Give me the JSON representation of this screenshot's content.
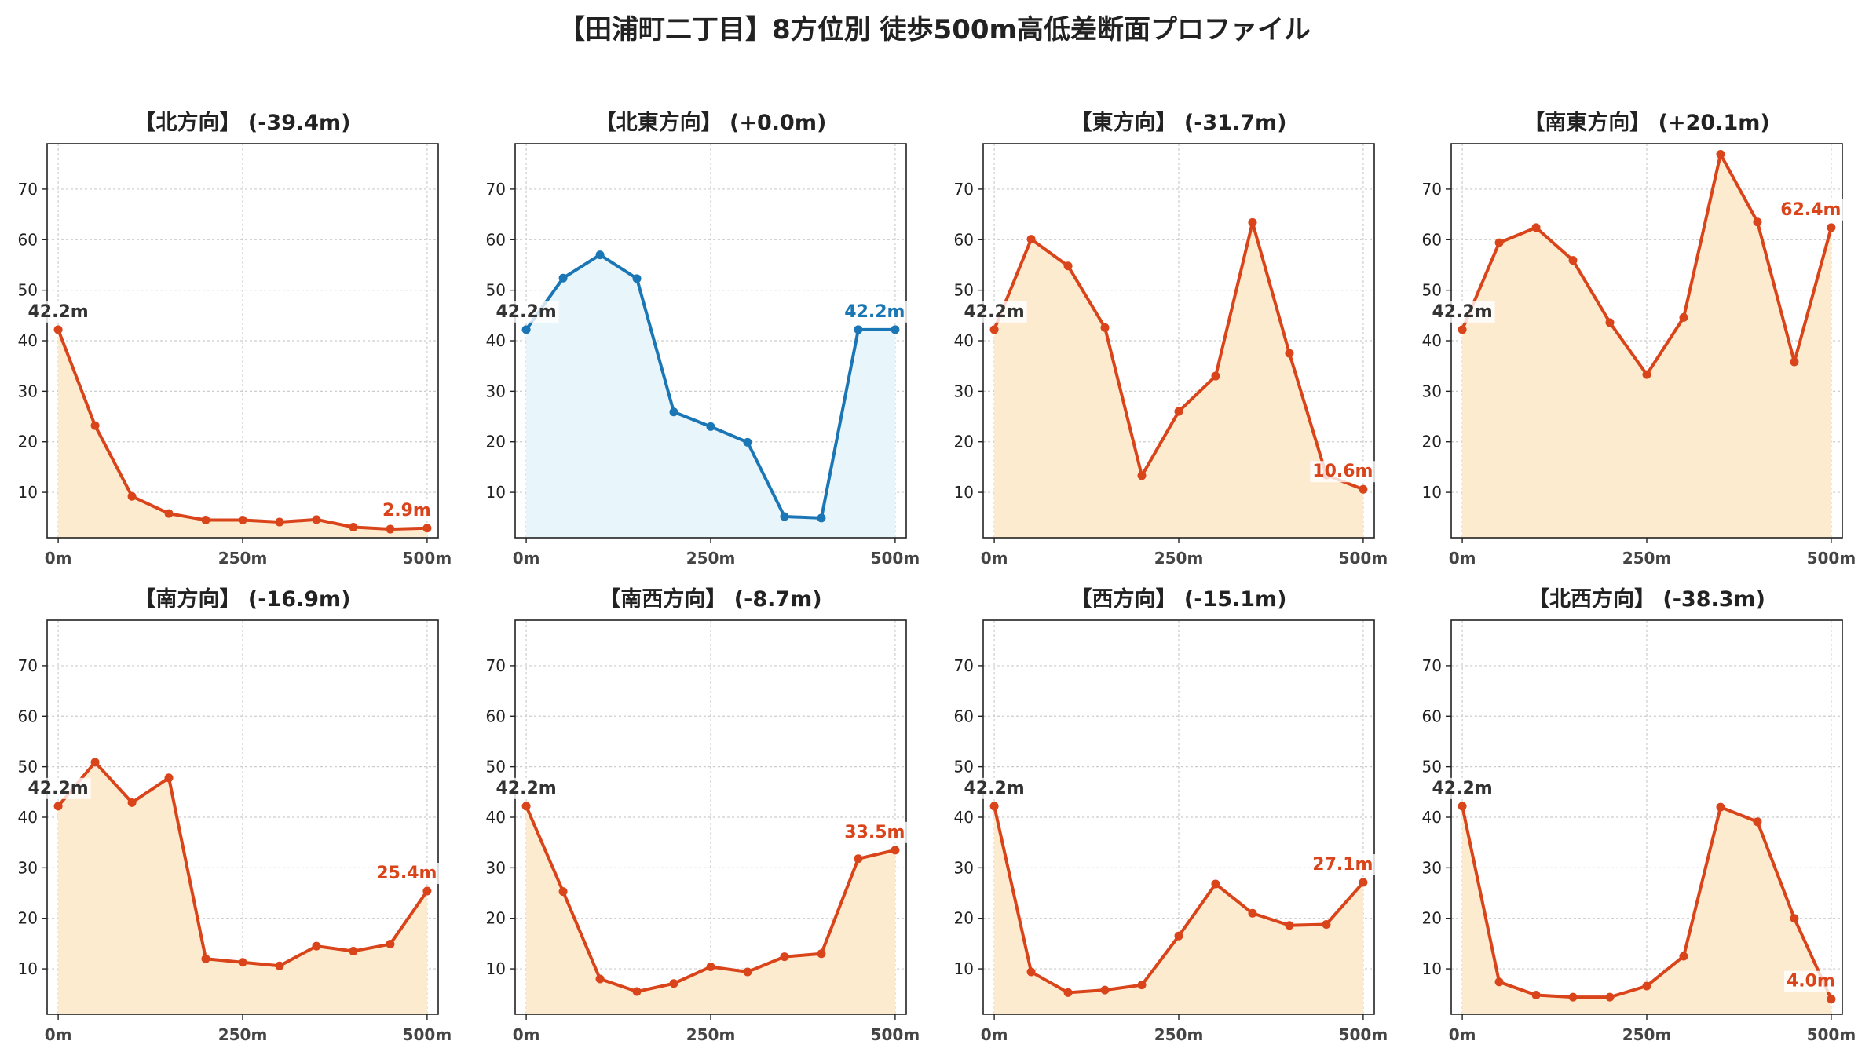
{
  "title": "【田浦町二丁目】8方位別 徒歩500m高低差断面プロファイル",
  "colors": {
    "line_default": "#d9441a",
    "fill_default": "#fdebd0",
    "line_flat": "#1a76b4",
    "fill_flat": "#e8f5fb",
    "start_label": "#333333",
    "grid": "#cccccc"
  },
  "chart_data": [
    {
      "type": "area",
      "title": "【北方向】 (-39.4m)",
      "style": "default",
      "x": [
        0,
        50,
        100,
        150,
        200,
        250,
        300,
        350,
        400,
        450,
        500
      ],
      "values": [
        42.2,
        23.2,
        9.2,
        5.8,
        4.5,
        4.5,
        4.1,
        4.6,
        3.1,
        2.7,
        2.9
      ],
      "start_label": "42.2m",
      "end_label": "2.9m",
      "xticks": [
        "0m",
        "250m",
        "500m"
      ],
      "yticks": [
        10,
        20,
        30,
        40,
        50,
        60,
        70
      ],
      "xlim": [
        -15,
        515
      ],
      "ylim": [
        1,
        79
      ],
      "grid": true
    },
    {
      "type": "area",
      "title": "【北東方向】 (+0.0m)",
      "style": "flat",
      "x": [
        0,
        50,
        100,
        150,
        200,
        250,
        300,
        350,
        400,
        450,
        500
      ],
      "values": [
        42.2,
        52.4,
        57.0,
        52.3,
        25.9,
        23.0,
        19.9,
        5.2,
        4.9,
        42.2,
        42.2
      ],
      "start_label": "42.2m",
      "end_label": "42.2m",
      "xticks": [
        "0m",
        "250m",
        "500m"
      ],
      "yticks": [
        10,
        20,
        30,
        40,
        50,
        60,
        70
      ],
      "xlim": [
        -15,
        515
      ],
      "ylim": [
        1,
        79
      ],
      "grid": true
    },
    {
      "type": "area",
      "title": "【東方向】 (-31.7m)",
      "style": "default",
      "x": [
        0,
        50,
        100,
        150,
        200,
        250,
        300,
        350,
        400,
        450,
        500
      ],
      "values": [
        42.2,
        60.1,
        54.8,
        42.6,
        13.3,
        26.0,
        33.0,
        63.4,
        37.5,
        13.4,
        10.6
      ],
      "start_label": "42.2m",
      "end_label": "10.6m",
      "xticks": [
        "0m",
        "250m",
        "500m"
      ],
      "yticks": [
        10,
        20,
        30,
        40,
        50,
        60,
        70
      ],
      "xlim": [
        -15,
        515
      ],
      "ylim": [
        1,
        79
      ],
      "grid": true
    },
    {
      "type": "area",
      "title": "【南東方向】 (+20.1m)",
      "style": "default",
      "x": [
        0,
        50,
        100,
        150,
        200,
        250,
        300,
        350,
        400,
        450,
        500
      ],
      "values": [
        42.2,
        59.4,
        62.4,
        55.9,
        43.6,
        33.3,
        44.6,
        76.9,
        63.5,
        35.8,
        62.4
      ],
      "start_label": "42.2m",
      "end_label": "62.4m",
      "xticks": [
        "0m",
        "250m",
        "500m"
      ],
      "yticks": [
        10,
        20,
        30,
        40,
        50,
        60,
        70
      ],
      "xlim": [
        -15,
        515
      ],
      "ylim": [
        1,
        79
      ],
      "grid": true
    },
    {
      "type": "area",
      "title": "【南方向】 (-16.9m)",
      "style": "default",
      "x": [
        0,
        50,
        100,
        150,
        200,
        250,
        300,
        350,
        400,
        450,
        500
      ],
      "values": [
        42.2,
        50.9,
        42.9,
        47.8,
        12.0,
        11.3,
        10.6,
        14.5,
        13.5,
        14.9,
        25.4
      ],
      "start_label": "42.2m",
      "end_label": "25.4m",
      "xticks": [
        "0m",
        "250m",
        "500m"
      ],
      "yticks": [
        10,
        20,
        30,
        40,
        50,
        60,
        70
      ],
      "xlim": [
        -15,
        515
      ],
      "ylim": [
        1,
        79
      ],
      "grid": true
    },
    {
      "type": "area",
      "title": "【南西方向】 (-8.7m)",
      "style": "default",
      "x": [
        0,
        50,
        100,
        150,
        200,
        250,
        300,
        350,
        400,
        450,
        500
      ],
      "values": [
        42.2,
        25.3,
        8.0,
        5.5,
        7.1,
        10.4,
        9.4,
        12.4,
        13.0,
        31.8,
        33.5
      ],
      "start_label": "42.2m",
      "end_label": "33.5m",
      "xticks": [
        "0m",
        "250m",
        "500m"
      ],
      "yticks": [
        10,
        20,
        30,
        40,
        50,
        60,
        70
      ],
      "xlim": [
        -15,
        515
      ],
      "ylim": [
        1,
        79
      ],
      "grid": true
    },
    {
      "type": "area",
      "title": "【西方向】 (-15.1m)",
      "style": "default",
      "x": [
        0,
        50,
        100,
        150,
        200,
        250,
        300,
        350,
        400,
        450,
        500
      ],
      "values": [
        42.2,
        9.4,
        5.3,
        5.8,
        6.8,
        16.5,
        26.8,
        21.0,
        18.6,
        18.8,
        27.1
      ],
      "start_label": "42.2m",
      "end_label": "27.1m",
      "xticks": [
        "0m",
        "250m",
        "500m"
      ],
      "yticks": [
        10,
        20,
        30,
        40,
        50,
        60,
        70
      ],
      "xlim": [
        -15,
        515
      ],
      "ylim": [
        1,
        79
      ],
      "grid": true
    },
    {
      "type": "area",
      "title": "【北西方向】 (-38.3m)",
      "style": "default",
      "x": [
        0,
        50,
        100,
        150,
        200,
        250,
        300,
        350,
        400,
        450,
        500
      ],
      "values": [
        42.2,
        7.4,
        4.8,
        4.4,
        4.4,
        6.6,
        12.5,
        42.0,
        39.1,
        20.0,
        4.0
      ],
      "start_label": "42.2m",
      "end_label": "4.0m",
      "xticks": [
        "0m",
        "250m",
        "500m"
      ],
      "yticks": [
        10,
        20,
        30,
        40,
        50,
        60,
        70
      ],
      "xlim": [
        -15,
        515
      ],
      "ylim": [
        1,
        79
      ],
      "grid": true
    }
  ]
}
